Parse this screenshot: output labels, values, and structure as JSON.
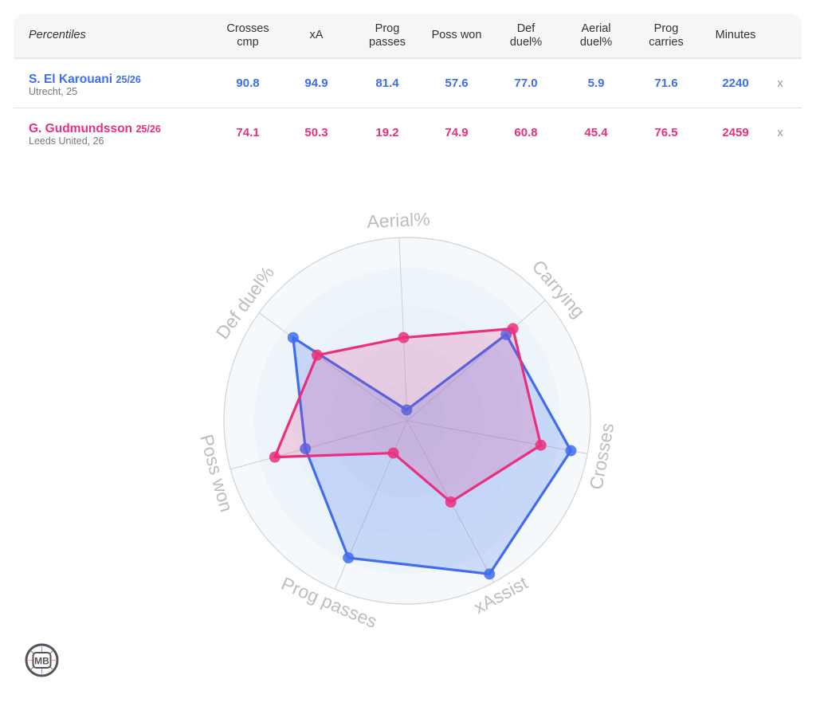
{
  "table": {
    "header": {
      "title": "Percentiles",
      "columns": [
        "Crosses\ncmp",
        "xA",
        "Prog\npasses",
        "Poss won",
        "Def\nduel%",
        "Aerial\nduel%",
        "Prog\ncarries",
        "Minutes"
      ]
    },
    "rows": [
      {
        "name": "S. El Karouani",
        "season": "25/26",
        "sub": "Utrecht, 25",
        "color": "#3e6df0",
        "values": [
          "90.8",
          "94.9",
          "81.4",
          "57.6",
          "77.0",
          "5.9",
          "71.6",
          "2240"
        ],
        "remove_label": "x"
      },
      {
        "name": "G. Gudmundsson",
        "season": "25/26",
        "sub": "Leeds United, 26",
        "color": "#ea2f7e",
        "values": [
          "74.1",
          "50.3",
          "19.2",
          "74.9",
          "60.8",
          "45.4",
          "76.5",
          "2459"
        ],
        "remove_label": "x"
      }
    ]
  },
  "chart_data": {
    "type": "radar",
    "axes": [
      "Aerial%",
      "Carrying",
      "Crosses",
      "xAssist",
      "Prog passes",
      "Poss won",
      "Def duel%"
    ],
    "range": [
      0,
      100
    ],
    "rings": 5,
    "series": [
      {
        "name": "S. El Karouani 25/26",
        "color": "#3e6df0",
        "values": [
          5.9,
          71.6,
          90.8,
          94.9,
          81.4,
          57.6,
          77.0
        ]
      },
      {
        "name": "G. Gudmundsson 25/26",
        "color": "#ea2f7e",
        "values": [
          45.4,
          76.5,
          74.1,
          50.3,
          19.2,
          74.9,
          60.8
        ]
      }
    ]
  },
  "logo": {
    "text": "MB"
  }
}
